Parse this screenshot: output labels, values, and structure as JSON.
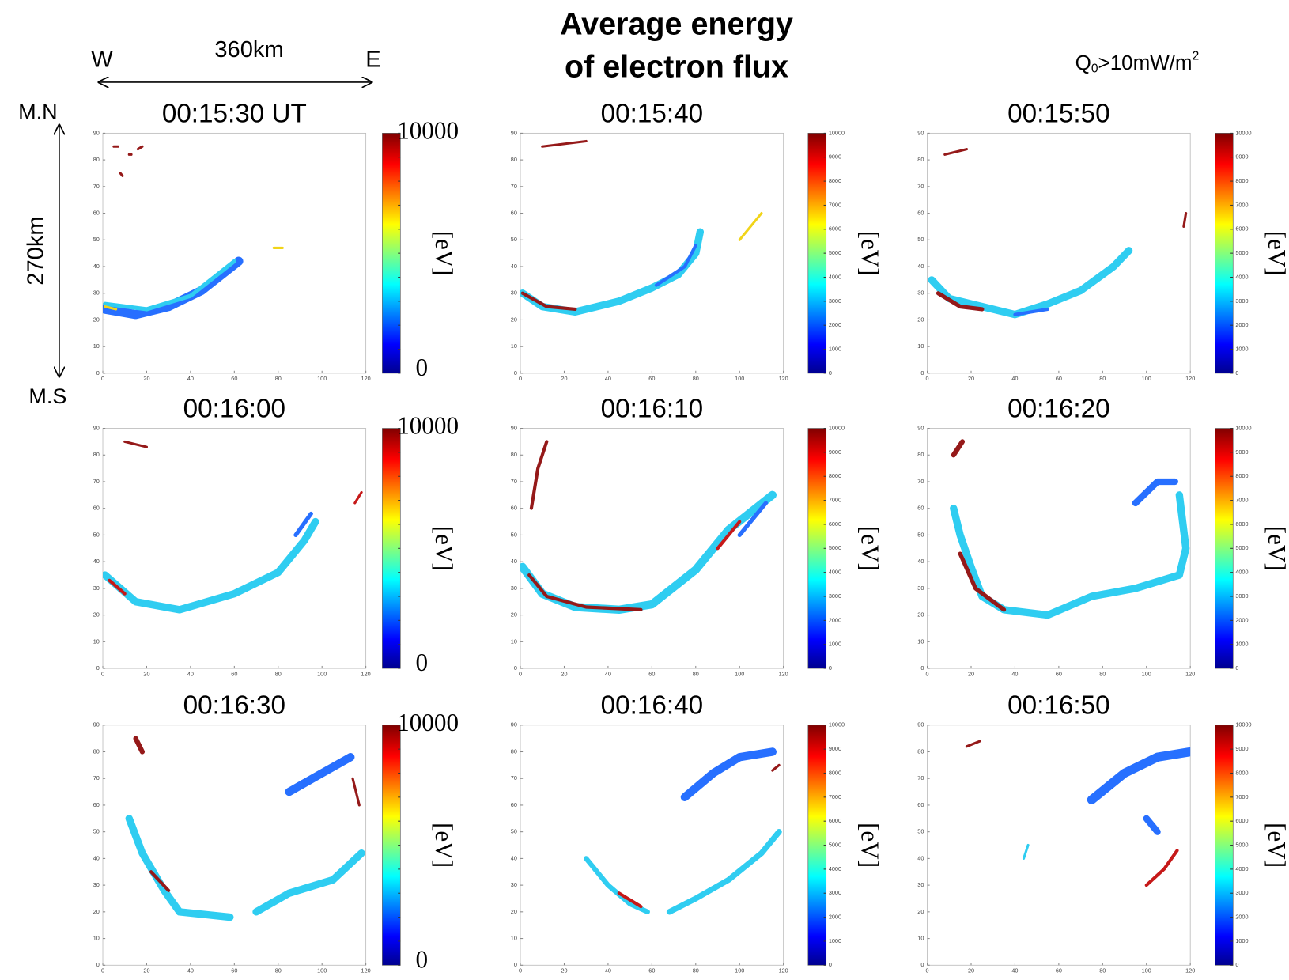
{
  "header": {
    "title_lines": [
      "Average energy",
      "of electron flux"
    ],
    "condition": {
      "base": "Q",
      "sub": "0",
      "text": ">10mW/m",
      "sup": "2"
    }
  },
  "scale": {
    "width": "360km",
    "west": "W",
    "east": "E",
    "height": "270km",
    "north": "M.N",
    "south": "M.S"
  },
  "chart_data": [
    {
      "type": "heatmap",
      "title": "00:15:30 UT",
      "xlim": [
        0,
        120
      ],
      "ylim": [
        0,
        90
      ],
      "xticks": [
        0,
        20,
        40,
        60,
        80,
        100,
        120
      ],
      "yticks": [
        0,
        10,
        20,
        30,
        40,
        50,
        60,
        70,
        80,
        90
      ],
      "colorbar_label": "[eV]",
      "clim": [
        0,
        10000
      ],
      "cticks": [
        0,
        1000,
        2000,
        3000,
        4000,
        5000,
        6000,
        7000,
        8000,
        9000,
        10000
      ],
      "colorbar_ends": [
        "10000",
        "0"
      ]
    },
    {
      "type": "heatmap",
      "title": "00:15:40",
      "xlim": [
        0,
        120
      ],
      "ylim": [
        0,
        90
      ],
      "xticks": [
        0,
        20,
        40,
        60,
        80,
        100,
        120
      ],
      "yticks": [
        0,
        10,
        20,
        30,
        40,
        50,
        60,
        70,
        80,
        90
      ],
      "colorbar_label": "[eV]",
      "clim": [
        0,
        10000
      ],
      "cticks": [
        0,
        1000,
        2000,
        3000,
        4000,
        5000,
        6000,
        7000,
        8000,
        9000,
        10000
      ]
    },
    {
      "type": "heatmap",
      "title": "00:15:50",
      "xlim": [
        0,
        120
      ],
      "ylim": [
        0,
        90
      ],
      "xticks": [
        0,
        20,
        40,
        60,
        80,
        100,
        120
      ],
      "yticks": [
        0,
        10,
        20,
        30,
        40,
        50,
        60,
        70,
        80,
        90
      ],
      "colorbar_label": "[eV]",
      "clim": [
        0,
        10000
      ],
      "cticks": [
        0,
        1000,
        2000,
        3000,
        4000,
        5000,
        6000,
        7000,
        8000,
        9000,
        10000
      ]
    },
    {
      "type": "heatmap",
      "title": "00:16:00",
      "xlim": [
        0,
        120
      ],
      "ylim": [
        0,
        90
      ],
      "xticks": [
        0,
        20,
        40,
        60,
        80,
        100,
        120
      ],
      "yticks": [
        0,
        10,
        20,
        30,
        40,
        50,
        60,
        70,
        80,
        90
      ],
      "colorbar_label": "[eV]",
      "clim": [
        0,
        10000
      ],
      "cticks": [
        0,
        1000,
        2000,
        3000,
        4000,
        5000,
        6000,
        7000,
        8000,
        9000,
        10000
      ],
      "colorbar_ends": [
        "10000",
        "0"
      ]
    },
    {
      "type": "heatmap",
      "title": "00:16:10",
      "xlim": [
        0,
        120
      ],
      "ylim": [
        0,
        90
      ],
      "xticks": [
        0,
        20,
        40,
        60,
        80,
        100,
        120
      ],
      "yticks": [
        0,
        10,
        20,
        30,
        40,
        50,
        60,
        70,
        80,
        90
      ],
      "colorbar_label": "[eV]",
      "clim": [
        0,
        10000
      ],
      "cticks": [
        0,
        1000,
        2000,
        3000,
        4000,
        5000,
        6000,
        7000,
        8000,
        9000,
        10000
      ]
    },
    {
      "type": "heatmap",
      "title": "00:16:20",
      "xlim": [
        0,
        120
      ],
      "ylim": [
        0,
        90
      ],
      "xticks": [
        0,
        20,
        40,
        60,
        80,
        100,
        120
      ],
      "yticks": [
        0,
        10,
        20,
        30,
        40,
        50,
        60,
        70,
        80,
        90
      ],
      "colorbar_label": "[eV]",
      "clim": [
        0,
        10000
      ],
      "cticks": [
        0,
        1000,
        2000,
        3000,
        4000,
        5000,
        6000,
        7000,
        8000,
        9000,
        10000
      ]
    },
    {
      "type": "heatmap",
      "title": "00:16:30",
      "xlim": [
        0,
        120
      ],
      "ylim": [
        0,
        90
      ],
      "xticks": [
        0,
        20,
        40,
        60,
        80,
        100,
        120
      ],
      "yticks": [
        0,
        10,
        20,
        30,
        40,
        50,
        60,
        70,
        80,
        90
      ],
      "colorbar_label": "[eV]",
      "clim": [
        0,
        10000
      ],
      "cticks": [
        0,
        1000,
        2000,
        3000,
        4000,
        5000,
        6000,
        7000,
        8000,
        9000,
        10000
      ],
      "colorbar_ends": [
        "10000",
        "0"
      ]
    },
    {
      "type": "heatmap",
      "title": "00:16:40",
      "xlim": [
        0,
        120
      ],
      "ylim": [
        0,
        90
      ],
      "xticks": [
        0,
        20,
        40,
        60,
        80,
        100,
        120
      ],
      "yticks": [
        0,
        10,
        20,
        30,
        40,
        50,
        60,
        70,
        80,
        90
      ],
      "colorbar_label": "[eV]",
      "clim": [
        0,
        10000
      ],
      "cticks": [
        0,
        1000,
        2000,
        3000,
        4000,
        5000,
        6000,
        7000,
        8000,
        9000,
        10000
      ]
    },
    {
      "type": "heatmap",
      "title": "00:16:50",
      "xlim": [
        0,
        120
      ],
      "ylim": [
        0,
        90
      ],
      "xticks": [
        0,
        20,
        40,
        60,
        80,
        100,
        120
      ],
      "yticks": [
        0,
        10,
        20,
        30,
        40,
        50,
        60,
        70,
        80,
        90
      ],
      "colorbar_label": "[eV]",
      "clim": [
        0,
        10000
      ],
      "cticks": [
        0,
        1000,
        2000,
        3000,
        4000,
        5000,
        6000,
        7000,
        8000,
        9000,
        10000
      ]
    }
  ]
}
